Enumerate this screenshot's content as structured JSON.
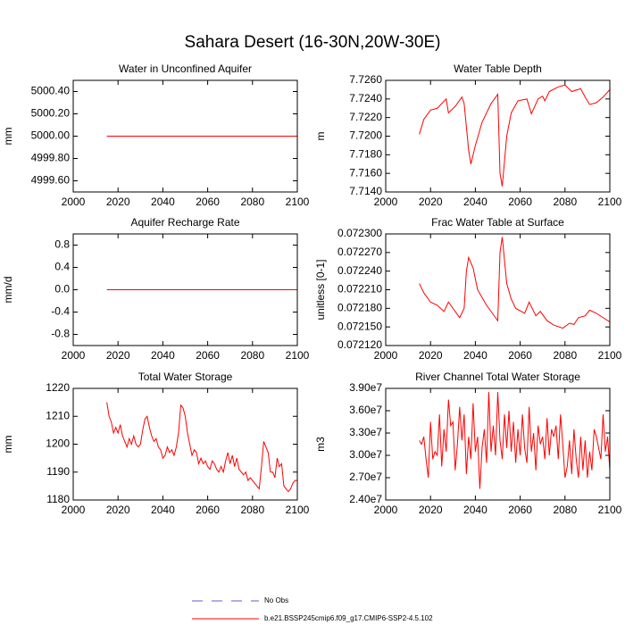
{
  "title": "Sahara Desert (16-30N,20W-30E)",
  "legend": [
    {
      "name": "No Obs",
      "color": "#6a5acd",
      "dash": true
    },
    {
      "name": "b.e21.BSSP245cmip6.f09_g17.CMIP6-SSP2-4.5.102",
      "color": "#ff0000",
      "dash": false
    }
  ],
  "chart_data": [
    {
      "type": "line",
      "title": "Water in Unconfined Aquifer",
      "y_label": "mm",
      "color": "#ff0000",
      "x": [
        2015,
        2100
      ],
      "values": [
        5000.0,
        5000.0
      ],
      "xlim": [
        2000,
        2100
      ],
      "xticks": [
        2000,
        2020,
        2040,
        2060,
        2080,
        2100
      ],
      "ylim": [
        4999.5,
        5000.5
      ],
      "yticks": [
        {
          "value": 4999.6,
          "label": "4999.60"
        },
        {
          "value": 4999.8,
          "label": "4999.80"
        },
        {
          "value": 5000.0,
          "label": "5000.00"
        },
        {
          "value": 5000.2,
          "label": "5000.20"
        },
        {
          "value": 5000.4,
          "label": "5000.40"
        }
      ]
    },
    {
      "type": "line",
      "title": "Water Table Depth",
      "y_label": "m",
      "color": "#ff0000",
      "x": [
        2015,
        2017,
        2020,
        2023,
        2027,
        2028,
        2031,
        2034,
        2035,
        2037,
        2038,
        2040,
        2043,
        2047,
        2050,
        2051,
        2052,
        2054,
        2056,
        2059,
        2063,
        2065,
        2068,
        2070,
        2071,
        2073,
        2077,
        2080,
        2083,
        2087,
        2089,
        2091,
        2094,
        2097,
        2100
      ],
      "values": [
        7.7202,
        7.7218,
        7.7228,
        7.723,
        7.724,
        7.7225,
        7.7232,
        7.7242,
        7.7235,
        7.7185,
        7.717,
        7.719,
        7.7215,
        7.7235,
        7.7245,
        7.716,
        7.7146,
        7.72,
        7.7225,
        7.7238,
        7.724,
        7.7224,
        7.724,
        7.7243,
        7.7238,
        7.7248,
        7.7253,
        7.7255,
        7.7248,
        7.7251,
        7.7242,
        7.7234,
        7.7236,
        7.7242,
        7.725
      ],
      "xlim": [
        2000,
        2100
      ],
      "xticks": [
        2000,
        2020,
        2040,
        2060,
        2080,
        2100
      ],
      "ylim": [
        7.714,
        7.726
      ],
      "yticks": [
        {
          "value": 7.714,
          "label": "7.7140"
        },
        {
          "value": 7.716,
          "label": "7.7160"
        },
        {
          "value": 7.718,
          "label": "7.7180"
        },
        {
          "value": 7.72,
          "label": "7.7200"
        },
        {
          "value": 7.722,
          "label": "7.7220"
        },
        {
          "value": 7.724,
          "label": "7.7240"
        },
        {
          "value": 7.726,
          "label": "7.7260"
        }
      ]
    },
    {
      "type": "line",
      "title": "Aquifer Recharge Rate",
      "y_label": "mm/d",
      "color": "#ff0000",
      "x": [
        2015,
        2100
      ],
      "values": [
        0,
        0
      ],
      "xlim": [
        2000,
        2100
      ],
      "xticks": [
        2000,
        2020,
        2040,
        2060,
        2080,
        2100
      ],
      "ylim": [
        -1,
        1
      ],
      "yticks": [
        -0.8,
        -0.4,
        {
          "value": 0,
          "label": "0.0"
        },
        0.4,
        0.8
      ]
    },
    {
      "type": "line",
      "title": "Frac Water Table at Surface",
      "y_label": "unitless [0-1]",
      "color": "#ff0000",
      "x": [
        2015,
        2017,
        2020,
        2023,
        2026,
        2028,
        2031,
        2033,
        2035,
        2036,
        2037,
        2039,
        2041,
        2045,
        2049,
        2050,
        2051,
        2052,
        2054,
        2056,
        2058,
        2062,
        2064,
        2067,
        2069,
        2072,
        2075,
        2079,
        2082,
        2084,
        2086,
        2089,
        2091,
        2094,
        2097,
        2100
      ],
      "values": [
        0.07222,
        0.072205,
        0.07219,
        0.072185,
        0.072175,
        0.07219,
        0.072175,
        0.072165,
        0.07218,
        0.07224,
        0.072262,
        0.072245,
        0.07221,
        0.072185,
        0.072165,
        0.07216,
        0.07227,
        0.072295,
        0.07222,
        0.072195,
        0.07218,
        0.072172,
        0.07219,
        0.072168,
        0.072175,
        0.07216,
        0.072153,
        0.072148,
        0.072156,
        0.072154,
        0.072165,
        0.072168,
        0.072177,
        0.072172,
        0.072165,
        0.072158
      ],
      "xlim": [
        2000,
        2100
      ],
      "xticks": [
        2000,
        2020,
        2040,
        2060,
        2080,
        2100
      ],
      "ylim": [
        0.07212,
        0.0723
      ],
      "yticks": [
        {
          "value": 0.07212,
          "label": "0.072120"
        },
        {
          "value": 0.07215,
          "label": "0.072150"
        },
        {
          "value": 0.07218,
          "label": "0.072180"
        },
        {
          "value": 0.07221,
          "label": "0.072210"
        },
        {
          "value": 0.07224,
          "label": "0.072240"
        },
        {
          "value": 0.07227,
          "label": "0.072270"
        },
        {
          "value": 0.0723,
          "label": "0.072300"
        }
      ]
    },
    {
      "type": "line",
      "title": "Total Water Storage",
      "y_label": "mm",
      "color": "#ff0000",
      "x": [
        2015,
        2016,
        2017,
        2018,
        2019,
        2020,
        2021,
        2022,
        2023,
        2024,
        2025,
        2026,
        2027,
        2028,
        2029,
        2030,
        2031,
        2032,
        2033,
        2034,
        2035,
        2036,
        2037,
        2038,
        2039,
        2040,
        2041,
        2042,
        2043,
        2044,
        2045,
        2046,
        2047,
        2048,
        2049,
        2050,
        2051,
        2052,
        2053,
        2054,
        2055,
        2056,
        2057,
        2058,
        2059,
        2060,
        2061,
        2062,
        2063,
        2064,
        2065,
        2066,
        2067,
        2068,
        2069,
        2070,
        2071,
        2072,
        2073,
        2074,
        2075,
        2076,
        2077,
        2078,
        2079,
        2080,
        2081,
        2082,
        2083,
        2084,
        2085,
        2086,
        2087,
        2088,
        2089,
        2090,
        2091,
        2092,
        2093,
        2094,
        2095,
        2096,
        2097,
        2098,
        2099,
        2100
      ],
      "values": [
        1215,
        1210,
        1208,
        1204,
        1206,
        1204,
        1207,
        1203,
        1201,
        1199,
        1202,
        1200,
        1203,
        1200,
        1199,
        1200,
        1205,
        1209,
        1210,
        1206,
        1203,
        1201,
        1202,
        1199,
        1198,
        1195,
        1196,
        1199,
        1197,
        1198,
        1196,
        1199,
        1204,
        1214,
        1213,
        1210,
        1204,
        1200,
        1196,
        1198,
        1197,
        1193,
        1195,
        1193,
        1194,
        1192,
        1191,
        1194,
        1193,
        1191,
        1190,
        1192,
        1190,
        1194,
        1197,
        1193,
        1196,
        1192,
        1195,
        1191,
        1190,
        1189,
        1190,
        1187,
        1188,
        1187,
        1186,
        1185,
        1184,
        1192,
        1201,
        1199,
        1197,
        1190,
        1190,
        1188,
        1195,
        1192,
        1193,
        1185,
        1184,
        1183,
        1184,
        1186,
        1187,
        1187
      ],
      "xlim": [
        2000,
        2100
      ],
      "xticks": [
        2000,
        2020,
        2040,
        2060,
        2080,
        2100
      ],
      "ylim": [
        1180,
        1220
      ],
      "yticks": [
        1180,
        1190,
        1200,
        1210,
        1220
      ]
    },
    {
      "type": "line",
      "title": "River Channel Total Water Storage",
      "y_label": "m3",
      "color": "#ff0000",
      "x": [
        2015,
        2016,
        2017,
        2018,
        2019,
        2020,
        2021,
        2022,
        2023,
        2024,
        2025,
        2026,
        2027,
        2028,
        2029,
        2030,
        2031,
        2032,
        2033,
        2034,
        2035,
        2036,
        2037,
        2038,
        2039,
        2040,
        2041,
        2042,
        2043,
        2044,
        2045,
        2046,
        2047,
        2048,
        2049,
        2050,
        2051,
        2052,
        2053,
        2054,
        2055,
        2056,
        2057,
        2058,
        2059,
        2060,
        2061,
        2062,
        2063,
        2064,
        2065,
        2066,
        2067,
        2068,
        2069,
        2070,
        2071,
        2072,
        2073,
        2074,
        2075,
        2076,
        2077,
        2078,
        2079,
        2080,
        2081,
        2082,
        2083,
        2084,
        2085,
        2086,
        2087,
        2088,
        2089,
        2090,
        2091,
        2092,
        2093,
        2094,
        2095,
        2096,
        2097,
        2098,
        2099,
        2100
      ],
      "values": [
        32000000,
        31500000,
        32500000,
        29500000,
        27000000,
        34500000,
        29500000,
        30500000,
        30000000,
        35500000,
        28500000,
        33500000,
        30500000,
        37500000,
        34000000,
        34500000,
        28000000,
        31500000,
        36500000,
        32000000,
        35500000,
        27500000,
        32500000,
        29500000,
        37000000,
        30500000,
        32500000,
        25500000,
        31000000,
        33500000,
        29000000,
        38500000,
        30500000,
        34000000,
        30000000,
        38500000,
        32000000,
        29500000,
        35500000,
        31000000,
        36000000,
        30500000,
        34500000,
        29000000,
        33500000,
        30000000,
        35500000,
        31000000,
        29000000,
        36500000,
        30500000,
        33000000,
        28000000,
        34000000,
        31500000,
        32500000,
        29500000,
        35000000,
        30000000,
        33500000,
        32500000,
        34000000,
        29500000,
        35500000,
        31500000,
        27000000,
        28500000,
        32000000,
        27500000,
        33500000,
        29500000,
        27000000,
        32500000,
        28000000,
        32000000,
        27000000,
        30500000,
        28000000,
        33500000,
        32500000,
        31000000,
        29500000,
        35500000,
        30500000,
        32500000,
        28000000
      ],
      "xlim": [
        2000,
        2100
      ],
      "xticks": [
        2000,
        2020,
        2040,
        2060,
        2080,
        2100
      ],
      "ylim": [
        24000000,
        39000000
      ],
      "yticks": [
        {
          "value": 24000000,
          "label": "2.40e7"
        },
        {
          "value": 27000000,
          "label": "2.70e7"
        },
        {
          "value": 30000000,
          "label": "3.00e7"
        },
        {
          "value": 33000000,
          "label": "3.30e7"
        },
        {
          "value": 36000000,
          "label": "3.60e7"
        },
        {
          "value": 39000000,
          "label": "3.90e7"
        }
      ]
    }
  ]
}
